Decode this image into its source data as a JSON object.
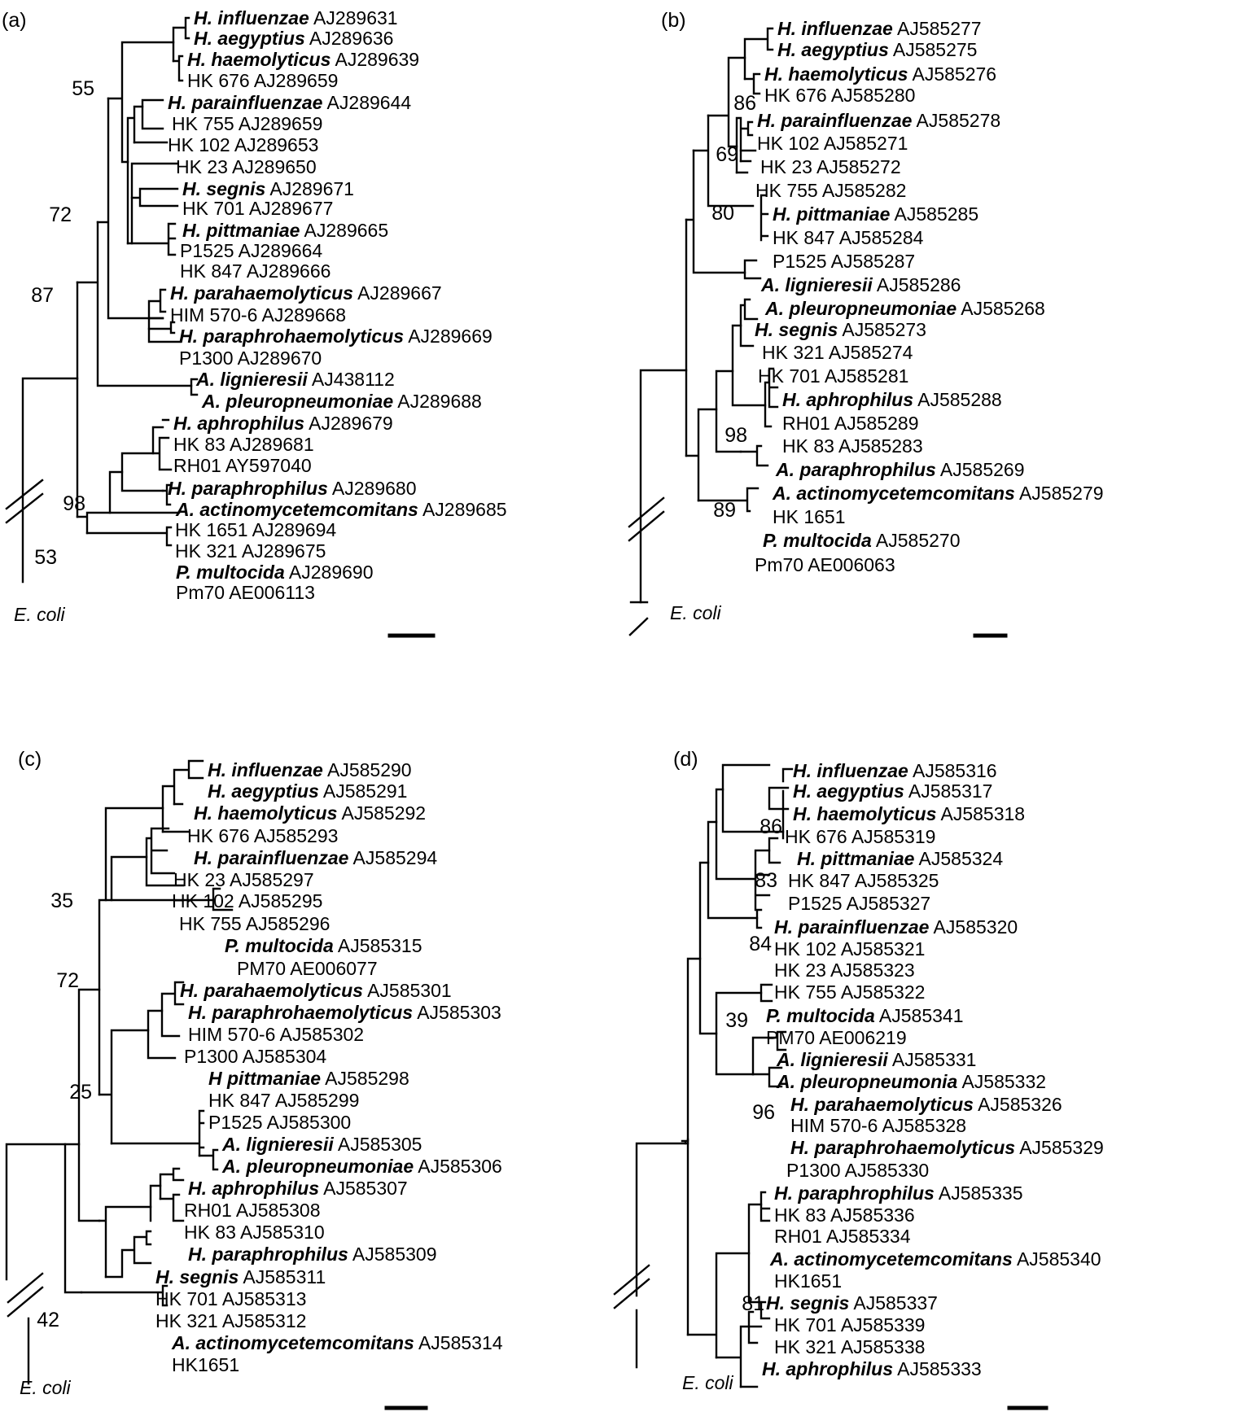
{
  "panels": [
    {
      "id": "a",
      "label": "(a)",
      "outgroup": "E. coli",
      "leaves": [
        {
          "species": "H. influenzae",
          "accession": "AJ289631"
        },
        {
          "species": "H. aegyptius",
          "accession": "AJ289636"
        },
        {
          "species": "H. haemolyticus",
          "accession": "AJ289639"
        },
        {
          "species": "",
          "accession": "HK 676 AJ289659"
        },
        {
          "species": "H. parainfluenzae",
          "accession": "AJ289644"
        },
        {
          "species": "",
          "accession": "HK 755 AJ289659"
        },
        {
          "species": "",
          "accession": "HK 102 AJ289653"
        },
        {
          "species": "",
          "accession": "HK 23 AJ289650"
        },
        {
          "species": "H. segnis",
          "accession": "AJ289671"
        },
        {
          "species": "",
          "accession": "HK 701 AJ289677"
        },
        {
          "species": "H. pittmaniae",
          "accession": "AJ289665"
        },
        {
          "species": "",
          "accession": "P1525 AJ289664"
        },
        {
          "species": "",
          "accession": "HK 847 AJ289666"
        },
        {
          "species": "H. parahaemolyticus",
          "accession": "AJ289667"
        },
        {
          "species": "",
          "accession": "HIM 570-6 AJ289668"
        },
        {
          "species": "H. paraphrohaemolyticus",
          "accession": "AJ289669"
        },
        {
          "species": "",
          "accession": "P1300 AJ289670"
        },
        {
          "species": "A. lignieresii",
          "accession": "AJ438112"
        },
        {
          "species": "A. pleuropneumoniae",
          "accession": "AJ289688"
        },
        {
          "species": "H. aphrophilus",
          "accession": "AJ289679"
        },
        {
          "species": "",
          "accession": "HK 83 AJ289681"
        },
        {
          "species": "",
          "accession": "RH01 AY597040"
        },
        {
          "species": "H. paraphrophilus",
          "accession": "AJ289680"
        },
        {
          "species": "A. actinomycetemcomitans",
          "accession": "AJ289685"
        },
        {
          "species": "",
          "accession": "HK 1651 AJ289694"
        },
        {
          "species": "",
          "accession": "HK 321 AJ289675"
        },
        {
          "species": "P. multocida",
          "accession": "AJ289690"
        },
        {
          "species": "",
          "accession": "Pm70 AE006113"
        }
      ],
      "bootstrap": [
        "55",
        "72",
        "87",
        "98",
        "53"
      ]
    },
    {
      "id": "b",
      "label": "(b)",
      "outgroup": "E. coli",
      "leaves": [
        {
          "species": "H. influenzae",
          "accession": "AJ585277"
        },
        {
          "species": "H. aegyptius",
          "accession": "AJ585275"
        },
        {
          "species": "H. haemolyticus",
          "accession": "AJ585276"
        },
        {
          "species": "",
          "accession": "HK 676 AJ585280"
        },
        {
          "species": "H. parainfluenzae",
          "accession": "AJ585278"
        },
        {
          "species": "",
          "accession": "HK 102 AJ585271"
        },
        {
          "species": "",
          "accession": "HK 23 AJ585272"
        },
        {
          "species": "",
          "accession": "HK 755 AJ585282"
        },
        {
          "species": "H. pittmaniae",
          "accession": "AJ585285"
        },
        {
          "species": "",
          "accession": "HK 847 AJ585284"
        },
        {
          "species": "",
          "accession": "P1525 AJ585287"
        },
        {
          "species": "A. lignieresii",
          "accession": "AJ585286"
        },
        {
          "species": "A. pleuropneumoniae",
          "accession": "AJ585268"
        },
        {
          "species": "H. segnis",
          "accession": "AJ585273"
        },
        {
          "species": "",
          "accession": "HK 321 AJ585274"
        },
        {
          "species": "",
          "accession": "HK 701 AJ585281"
        },
        {
          "species": "H. aphrophilus",
          "accession": "AJ585288"
        },
        {
          "species": "",
          "accession": "RH01 AJ585289"
        },
        {
          "species": "",
          "accession": "HK 83 AJ585283"
        },
        {
          "species": "A. paraphrophilus",
          "accession": "AJ585269"
        },
        {
          "species": "A. actinomycetemcomitans",
          "accession": "AJ585279"
        },
        {
          "species": "",
          "accession": "HK 1651"
        },
        {
          "species": "P. multocida",
          "accession": "AJ585270"
        },
        {
          "species": "",
          "accession": "Pm70 AE006063"
        }
      ],
      "bootstrap": [
        "86",
        "69",
        "80",
        "98",
        "89"
      ]
    },
    {
      "id": "c",
      "label": "(c)",
      "outgroup": "E. coli",
      "leaves": [
        {
          "species": "H. influenzae",
          "accession": "AJ585290"
        },
        {
          "species": "H. aegyptius",
          "accession": "AJ585291"
        },
        {
          "species": "H. haemolyticus",
          "accession": "AJ585292"
        },
        {
          "species": "",
          "accession": "HK 676 AJ585293"
        },
        {
          "species": "H. parainfluenzae",
          "accession": "AJ585294"
        },
        {
          "species": "",
          "accession": "HK 23 AJ585297"
        },
        {
          "species": "",
          "accession": "HK 102 AJ585295"
        },
        {
          "species": "",
          "accession": "HK 755 AJ585296"
        },
        {
          "species": "P. multocida",
          "accession": "AJ585315"
        },
        {
          "species": "",
          "accession": "PM70 AE006077"
        },
        {
          "species": "H. parahaemolyticus",
          "accession": "AJ585301"
        },
        {
          "species": "H. paraphrohaemolyticus",
          "accession": "AJ585303"
        },
        {
          "species": "",
          "accession": "HIM 570-6 AJ585302"
        },
        {
          "species": "",
          "accession": "P1300 AJ585304"
        },
        {
          "species": "H pittmaniae",
          "accession": "AJ585298"
        },
        {
          "species": "",
          "accession": "HK 847 AJ585299"
        },
        {
          "species": "",
          "accession": "P1525 AJ585300"
        },
        {
          "species": "A. lignieresii",
          "accession": "AJ585305"
        },
        {
          "species": "A. pleuropneumoniae",
          "accession": "AJ585306"
        },
        {
          "species": "H. aphrophilus",
          "accession": "AJ585307"
        },
        {
          "species": "",
          "accession": "RH01 AJ585308"
        },
        {
          "species": "",
          "accession": "HK 83 AJ585310"
        },
        {
          "species": "H. paraphrophilus",
          "accession": "AJ585309"
        },
        {
          "species": "H. segnis",
          "accession": "AJ585311"
        },
        {
          "species": "",
          "accession": "HK 701 AJ585313"
        },
        {
          "species": "",
          "accession": "HK 321 AJ585312"
        },
        {
          "species": "A. actinomycetemcomitans",
          "accession": "AJ585314"
        },
        {
          "species": "",
          "accession": "HK1651"
        }
      ],
      "bootstrap": [
        "35",
        "72",
        "25",
        "42"
      ]
    },
    {
      "id": "d",
      "label": "(d)",
      "outgroup": "E. coli",
      "leaves": [
        {
          "species": "H. influenzae",
          "accession": "AJ585316"
        },
        {
          "species": "H. aegyptius",
          "accession": "AJ585317"
        },
        {
          "species": "H. haemolyticus",
          "accession": "AJ585318"
        },
        {
          "species": "",
          "accession": "HK 676 AJ585319"
        },
        {
          "species": "H. pittmaniae",
          "accession": "AJ585324"
        },
        {
          "species": "",
          "accession": "HK 847 AJ585325"
        },
        {
          "species": "",
          "accession": "P1525 AJ585327"
        },
        {
          "species": "H. parainfluenzae",
          "accession": "AJ585320"
        },
        {
          "species": "",
          "accession": "HK 102 AJ585321"
        },
        {
          "species": "",
          "accession": "HK 23 AJ585323"
        },
        {
          "species": "",
          "accession": "HK 755 AJ585322"
        },
        {
          "species": "P. multocida",
          "accession": "AJ585341"
        },
        {
          "species": "",
          "accession": "PM70 AE006219"
        },
        {
          "species": "A. lignieresii",
          "accession": "AJ585331"
        },
        {
          "species": "A. pleuropneumonia",
          "accession": "AJ585332"
        },
        {
          "species": "H. parahaemolyticus",
          "accession": "AJ585326"
        },
        {
          "species": "",
          "accession": "HIM 570-6 AJ585328"
        },
        {
          "species": "H. paraphrohaemolyticus",
          "accession": "AJ585329"
        },
        {
          "species": "",
          "accession": "P1300 AJ585330"
        },
        {
          "species": "H. paraphrophilus",
          "accession": "AJ585335"
        },
        {
          "species": "",
          "accession": "HK 83 AJ585336"
        },
        {
          "species": "",
          "accession": "RH01 AJ585334"
        },
        {
          "species": "A. actinomycetemcomitans",
          "accession": "AJ585340"
        },
        {
          "species": "",
          "accession": "HK1651"
        },
        {
          "species": "H. segnis",
          "accession": "AJ585337"
        },
        {
          "species": "",
          "accession": "HK 701 AJ585339"
        },
        {
          "species": "",
          "accession": "HK 321 AJ585338"
        },
        {
          "species": "H. aphrophilus",
          "accession": "AJ585333"
        }
      ],
      "bootstrap": [
        "86",
        "83",
        "84",
        "39",
        "96",
        "81"
      ]
    }
  ]
}
